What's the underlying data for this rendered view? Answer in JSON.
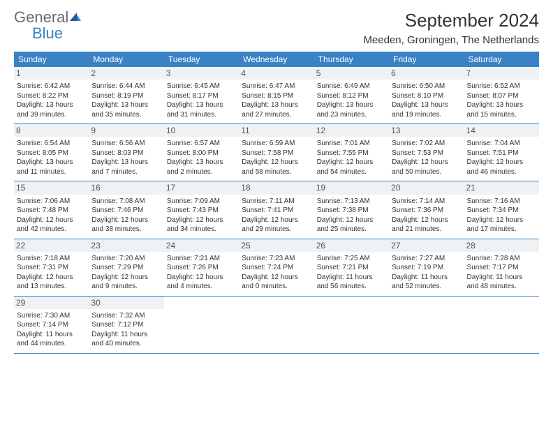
{
  "logo": {
    "general": "General",
    "blue": "Blue"
  },
  "title": "September 2024",
  "location": "Meeden, Groningen, The Netherlands",
  "colors": {
    "header_bg": "#3b82c4",
    "header_text": "#ffffff",
    "body_bg": "#ffffff",
    "text": "#333333",
    "daynum_bg": "#eef2f5",
    "border": "#3b82c4",
    "logo_gray": "#6b6b6b",
    "logo_blue": "#3b82c4"
  },
  "weekdays": [
    "Sunday",
    "Monday",
    "Tuesday",
    "Wednesday",
    "Thursday",
    "Friday",
    "Saturday"
  ],
  "weeks": [
    [
      {
        "n": "1",
        "sr": "Sunrise: 6:42 AM",
        "ss": "Sunset: 8:22 PM",
        "d1": "Daylight: 13 hours",
        "d2": "and 39 minutes."
      },
      {
        "n": "2",
        "sr": "Sunrise: 6:44 AM",
        "ss": "Sunset: 8:19 PM",
        "d1": "Daylight: 13 hours",
        "d2": "and 35 minutes."
      },
      {
        "n": "3",
        "sr": "Sunrise: 6:45 AM",
        "ss": "Sunset: 8:17 PM",
        "d1": "Daylight: 13 hours",
        "d2": "and 31 minutes."
      },
      {
        "n": "4",
        "sr": "Sunrise: 6:47 AM",
        "ss": "Sunset: 8:15 PM",
        "d1": "Daylight: 13 hours",
        "d2": "and 27 minutes."
      },
      {
        "n": "5",
        "sr": "Sunrise: 6:49 AM",
        "ss": "Sunset: 8:12 PM",
        "d1": "Daylight: 13 hours",
        "d2": "and 23 minutes."
      },
      {
        "n": "6",
        "sr": "Sunrise: 6:50 AM",
        "ss": "Sunset: 8:10 PM",
        "d1": "Daylight: 13 hours",
        "d2": "and 19 minutes."
      },
      {
        "n": "7",
        "sr": "Sunrise: 6:52 AM",
        "ss": "Sunset: 8:07 PM",
        "d1": "Daylight: 13 hours",
        "d2": "and 15 minutes."
      }
    ],
    [
      {
        "n": "8",
        "sr": "Sunrise: 6:54 AM",
        "ss": "Sunset: 8:05 PM",
        "d1": "Daylight: 13 hours",
        "d2": "and 11 minutes."
      },
      {
        "n": "9",
        "sr": "Sunrise: 6:56 AM",
        "ss": "Sunset: 8:03 PM",
        "d1": "Daylight: 13 hours",
        "d2": "and 7 minutes."
      },
      {
        "n": "10",
        "sr": "Sunrise: 6:57 AM",
        "ss": "Sunset: 8:00 PM",
        "d1": "Daylight: 13 hours",
        "d2": "and 2 minutes."
      },
      {
        "n": "11",
        "sr": "Sunrise: 6:59 AM",
        "ss": "Sunset: 7:58 PM",
        "d1": "Daylight: 12 hours",
        "d2": "and 58 minutes."
      },
      {
        "n": "12",
        "sr": "Sunrise: 7:01 AM",
        "ss": "Sunset: 7:55 PM",
        "d1": "Daylight: 12 hours",
        "d2": "and 54 minutes."
      },
      {
        "n": "13",
        "sr": "Sunrise: 7:02 AM",
        "ss": "Sunset: 7:53 PM",
        "d1": "Daylight: 12 hours",
        "d2": "and 50 minutes."
      },
      {
        "n": "14",
        "sr": "Sunrise: 7:04 AM",
        "ss": "Sunset: 7:51 PM",
        "d1": "Daylight: 12 hours",
        "d2": "and 46 minutes."
      }
    ],
    [
      {
        "n": "15",
        "sr": "Sunrise: 7:06 AM",
        "ss": "Sunset: 7:48 PM",
        "d1": "Daylight: 12 hours",
        "d2": "and 42 minutes."
      },
      {
        "n": "16",
        "sr": "Sunrise: 7:08 AM",
        "ss": "Sunset: 7:46 PM",
        "d1": "Daylight: 12 hours",
        "d2": "and 38 minutes."
      },
      {
        "n": "17",
        "sr": "Sunrise: 7:09 AM",
        "ss": "Sunset: 7:43 PM",
        "d1": "Daylight: 12 hours",
        "d2": "and 34 minutes."
      },
      {
        "n": "18",
        "sr": "Sunrise: 7:11 AM",
        "ss": "Sunset: 7:41 PM",
        "d1": "Daylight: 12 hours",
        "d2": "and 29 minutes."
      },
      {
        "n": "19",
        "sr": "Sunrise: 7:13 AM",
        "ss": "Sunset: 7:38 PM",
        "d1": "Daylight: 12 hours",
        "d2": "and 25 minutes."
      },
      {
        "n": "20",
        "sr": "Sunrise: 7:14 AM",
        "ss": "Sunset: 7:36 PM",
        "d1": "Daylight: 12 hours",
        "d2": "and 21 minutes."
      },
      {
        "n": "21",
        "sr": "Sunrise: 7:16 AM",
        "ss": "Sunset: 7:34 PM",
        "d1": "Daylight: 12 hours",
        "d2": "and 17 minutes."
      }
    ],
    [
      {
        "n": "22",
        "sr": "Sunrise: 7:18 AM",
        "ss": "Sunset: 7:31 PM",
        "d1": "Daylight: 12 hours",
        "d2": "and 13 minutes."
      },
      {
        "n": "23",
        "sr": "Sunrise: 7:20 AM",
        "ss": "Sunset: 7:29 PM",
        "d1": "Daylight: 12 hours",
        "d2": "and 9 minutes."
      },
      {
        "n": "24",
        "sr": "Sunrise: 7:21 AM",
        "ss": "Sunset: 7:26 PM",
        "d1": "Daylight: 12 hours",
        "d2": "and 4 minutes."
      },
      {
        "n": "25",
        "sr": "Sunrise: 7:23 AM",
        "ss": "Sunset: 7:24 PM",
        "d1": "Daylight: 12 hours",
        "d2": "and 0 minutes."
      },
      {
        "n": "26",
        "sr": "Sunrise: 7:25 AM",
        "ss": "Sunset: 7:21 PM",
        "d1": "Daylight: 11 hours",
        "d2": "and 56 minutes."
      },
      {
        "n": "27",
        "sr": "Sunrise: 7:27 AM",
        "ss": "Sunset: 7:19 PM",
        "d1": "Daylight: 11 hours",
        "d2": "and 52 minutes."
      },
      {
        "n": "28",
        "sr": "Sunrise: 7:28 AM",
        "ss": "Sunset: 7:17 PM",
        "d1": "Daylight: 11 hours",
        "d2": "and 48 minutes."
      }
    ],
    [
      {
        "n": "29",
        "sr": "Sunrise: 7:30 AM",
        "ss": "Sunset: 7:14 PM",
        "d1": "Daylight: 11 hours",
        "d2": "and 44 minutes."
      },
      {
        "n": "30",
        "sr": "Sunrise: 7:32 AM",
        "ss": "Sunset: 7:12 PM",
        "d1": "Daylight: 11 hours",
        "d2": "and 40 minutes."
      },
      null,
      null,
      null,
      null,
      null
    ]
  ]
}
